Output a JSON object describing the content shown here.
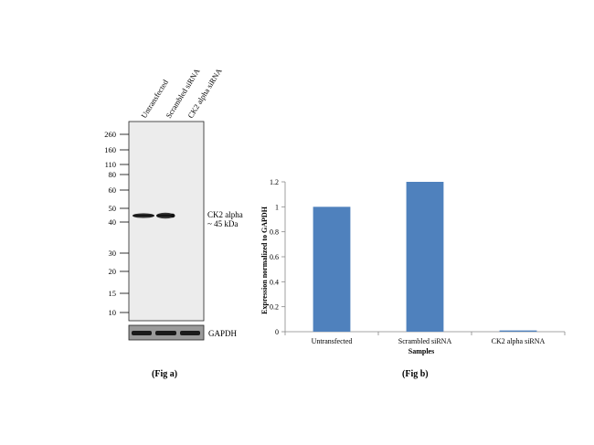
{
  "blot": {
    "lanes": [
      "Untransfected",
      "Scrambled siRNA",
      "CK2 alpha siRNA"
    ],
    "markers": [
      {
        "label": "260",
        "kda": 260
      },
      {
        "label": "160",
        "kda": 160
      },
      {
        "label": "110",
        "kda": 110
      },
      {
        "label": "80",
        "kda": 80
      },
      {
        "label": "60",
        "kda": 60
      },
      {
        "label": "50",
        "kda": 50
      },
      {
        "label": "40",
        "kda": 40
      },
      {
        "label": "30",
        "kda": 30
      },
      {
        "label": "20",
        "kda": 20
      },
      {
        "label": "15",
        "kda": 15
      },
      {
        "label": "10",
        "kda": 10
      }
    ],
    "band_label_line1": "CK2 alpha",
    "band_label_line2": "~ 45 kDa",
    "loading_control": "GAPDH",
    "caption": "(Fig  a)"
  },
  "chart_data": {
    "type": "bar",
    "categories": [
      "Untransfected",
      "Scrambled siRNA",
      "CK2 alpha  siRNA"
    ],
    "values": [
      1.0,
      1.2,
      0.01
    ],
    "ylabel": "Expression  normalized to GAPDH",
    "xlabel": "Samples",
    "ylim": [
      0,
      1.2
    ],
    "yticks": [
      "0",
      "0.2",
      "0.4",
      "0.6",
      "0.8",
      "1",
      "1.2"
    ],
    "bar_color": "#4f81bd",
    "grid": false,
    "caption": "(Fig  b)"
  }
}
